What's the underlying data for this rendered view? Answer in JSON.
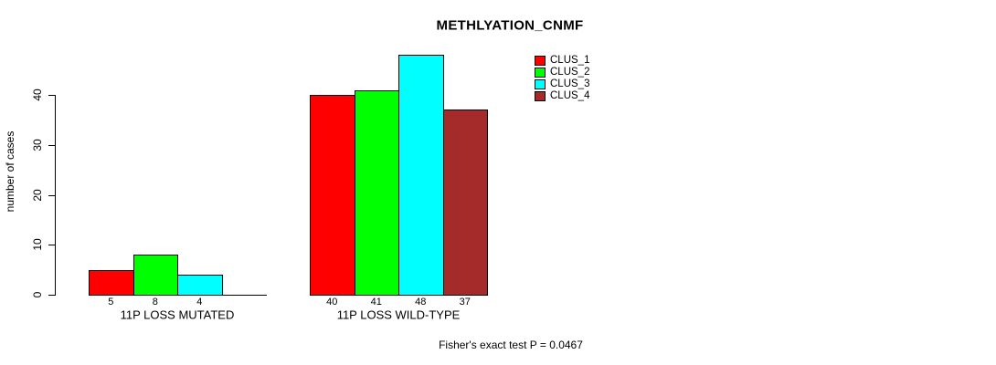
{
  "chart_data": {
    "type": "bar",
    "title": "METHLYATION_CNMF",
    "ylabel": "number of cases",
    "annotation": "Fisher's exact test P = 0.0467",
    "yticks": [
      0,
      10,
      20,
      30,
      40
    ],
    "ylim": [
      0,
      48
    ],
    "grid": false,
    "legend_position": "top-right",
    "series": [
      "CLUS_1",
      "CLUS_2",
      "CLUS_3",
      "CLUS_4"
    ],
    "colors": [
      "#FF0000",
      "#00FF00",
      "#00FFFF",
      "#A52A2A"
    ],
    "groups": [
      {
        "label": "11P LOSS MUTATED",
        "values": [
          5,
          8,
          4,
          0
        ],
        "bar_labels": [
          "5",
          "8",
          "4",
          ""
        ]
      },
      {
        "label": "11P LOSS WILD-TYPE",
        "values": [
          40,
          41,
          48,
          37
        ],
        "bar_labels": [
          "40",
          "41",
          "48",
          "37"
        ]
      }
    ]
  }
}
